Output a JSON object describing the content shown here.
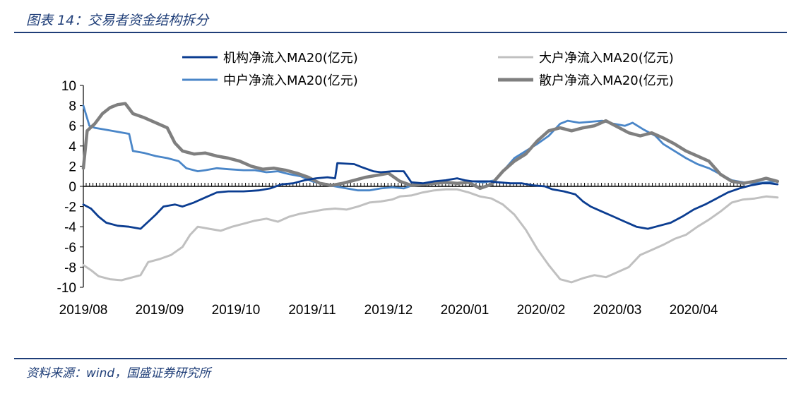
{
  "figure": {
    "title": "图表 14：交易者资金结构拆分",
    "source": "资料来源：wind，国盛证券研究所"
  },
  "chart_data": {
    "type": "line",
    "title": "",
    "xlabel": "",
    "ylabel": "",
    "ylim": [
      -10,
      10
    ],
    "yticks": [
      "10",
      "8",
      "6",
      "4",
      "2",
      "0",
      "-2",
      "-4",
      "-6",
      "-8",
      "-10"
    ],
    "xtick_labels": [
      "2019/08",
      "2019/09",
      "2019/10",
      "2019/11",
      "2019/12",
      "2020/01",
      "2020/02",
      "2020/03",
      "2020/04"
    ],
    "x_domain": [
      "2019/08",
      "2020/04 end"
    ],
    "legend_position": "top",
    "series": [
      {
        "name": "机构净流入MA20(亿元)",
        "color": "#0b3d91",
        "points": [
          [
            0.0,
            -1.8
          ],
          [
            0.1,
            -2.2
          ],
          [
            0.2,
            -3.0
          ],
          [
            0.3,
            -3.6
          ],
          [
            0.45,
            -3.9
          ],
          [
            0.6,
            -4.0
          ],
          [
            0.75,
            -4.2
          ],
          [
            0.85,
            -3.5
          ],
          [
            0.95,
            -2.8
          ],
          [
            1.05,
            -2.0
          ],
          [
            1.2,
            -1.8
          ],
          [
            1.3,
            -2.0
          ],
          [
            1.45,
            -1.6
          ],
          [
            1.6,
            -1.1
          ],
          [
            1.75,
            -0.6
          ],
          [
            1.9,
            -0.5
          ],
          [
            2.1,
            -0.5
          ],
          [
            2.3,
            -0.4
          ],
          [
            2.45,
            -0.2
          ],
          [
            2.6,
            0.2
          ],
          [
            2.75,
            0.3
          ],
          [
            2.9,
            0.6
          ],
          [
            3.05,
            0.8
          ],
          [
            3.2,
            0.9
          ],
          [
            3.3,
            0.8
          ],
          [
            3.33,
            2.3
          ],
          [
            3.55,
            2.2
          ],
          [
            3.65,
            1.9
          ],
          [
            3.8,
            1.5
          ],
          [
            3.9,
            1.4
          ],
          [
            4.05,
            1.5
          ],
          [
            4.2,
            1.5
          ],
          [
            4.3,
            0.4
          ],
          [
            4.45,
            0.3
          ],
          [
            4.6,
            0.5
          ],
          [
            4.75,
            0.6
          ],
          [
            4.9,
            0.8
          ],
          [
            5.0,
            0.6
          ],
          [
            5.1,
            0.5
          ],
          [
            5.3,
            0.5
          ],
          [
            5.45,
            0.4
          ],
          [
            5.6,
            0.3
          ],
          [
            5.75,
            0.3
          ],
          [
            5.9,
            0.1
          ],
          [
            6.05,
            0.0
          ],
          [
            6.15,
            -0.3
          ],
          [
            6.3,
            -0.5
          ],
          [
            6.45,
            -0.8
          ],
          [
            6.55,
            -1.5
          ],
          [
            6.65,
            -2.0
          ],
          [
            6.8,
            -2.5
          ],
          [
            6.95,
            -3.0
          ],
          [
            7.1,
            -3.5
          ],
          [
            7.25,
            -4.0
          ],
          [
            7.4,
            -4.2
          ],
          [
            7.55,
            -3.9
          ],
          [
            7.7,
            -3.6
          ],
          [
            7.85,
            -3.0
          ],
          [
            8.0,
            -2.3
          ],
          [
            8.15,
            -1.8
          ],
          [
            8.3,
            -1.2
          ],
          [
            8.45,
            -0.6
          ],
          [
            8.6,
            -0.2
          ],
          [
            8.75,
            0.1
          ],
          [
            8.9,
            0.3
          ],
          [
            9.0,
            0.3
          ],
          [
            9.1,
            0.2
          ]
        ]
      },
      {
        "name": "大户净流入MA20(亿元)",
        "color": "#c0c0c0",
        "points": [
          [
            0.0,
            -7.8
          ],
          [
            0.1,
            -8.3
          ],
          [
            0.2,
            -8.9
          ],
          [
            0.35,
            -9.2
          ],
          [
            0.5,
            -9.3
          ],
          [
            0.65,
            -9.0
          ],
          [
            0.75,
            -8.8
          ],
          [
            0.85,
            -7.5
          ],
          [
            1.0,
            -7.2
          ],
          [
            1.15,
            -6.8
          ],
          [
            1.3,
            -6.0
          ],
          [
            1.4,
            -4.8
          ],
          [
            1.5,
            -4.0
          ],
          [
            1.65,
            -4.2
          ],
          [
            1.8,
            -4.4
          ],
          [
            1.95,
            -4.0
          ],
          [
            2.1,
            -3.7
          ],
          [
            2.25,
            -3.4
          ],
          [
            2.4,
            -3.2
          ],
          [
            2.55,
            -3.5
          ],
          [
            2.7,
            -3.0
          ],
          [
            2.85,
            -2.7
          ],
          [
            3.0,
            -2.5
          ],
          [
            3.15,
            -2.3
          ],
          [
            3.3,
            -2.2
          ],
          [
            3.45,
            -2.3
          ],
          [
            3.6,
            -2.0
          ],
          [
            3.75,
            -1.6
          ],
          [
            3.9,
            -1.5
          ],
          [
            4.05,
            -1.3
          ],
          [
            4.15,
            -1.0
          ],
          [
            4.3,
            -0.9
          ],
          [
            4.45,
            -0.6
          ],
          [
            4.6,
            -0.4
          ],
          [
            4.75,
            -0.3
          ],
          [
            4.9,
            -0.3
          ],
          [
            5.05,
            -0.6
          ],
          [
            5.2,
            -1.0
          ],
          [
            5.35,
            -1.2
          ],
          [
            5.5,
            -1.8
          ],
          [
            5.65,
            -2.8
          ],
          [
            5.8,
            -4.3
          ],
          [
            5.95,
            -6.2
          ],
          [
            6.1,
            -7.8
          ],
          [
            6.25,
            -9.2
          ],
          [
            6.4,
            -9.5
          ],
          [
            6.55,
            -9.1
          ],
          [
            6.7,
            -8.8
          ],
          [
            6.85,
            -9.0
          ],
          [
            7.0,
            -8.5
          ],
          [
            7.15,
            -8.0
          ],
          [
            7.3,
            -6.8
          ],
          [
            7.45,
            -6.3
          ],
          [
            7.6,
            -5.8
          ],
          [
            7.75,
            -5.2
          ],
          [
            7.9,
            -4.8
          ],
          [
            8.05,
            -4.0
          ],
          [
            8.2,
            -3.3
          ],
          [
            8.35,
            -2.5
          ],
          [
            8.5,
            -1.6
          ],
          [
            8.65,
            -1.3
          ],
          [
            8.8,
            -1.2
          ],
          [
            8.95,
            -1.0
          ],
          [
            9.1,
            -1.1
          ]
        ]
      },
      {
        "name": "中户净流入MA20(亿元)",
        "color": "#4a86c8",
        "points": [
          [
            0.0,
            8.0
          ],
          [
            0.08,
            6.0
          ],
          [
            0.15,
            5.8
          ],
          [
            0.3,
            5.6
          ],
          [
            0.45,
            5.4
          ],
          [
            0.6,
            5.2
          ],
          [
            0.65,
            3.5
          ],
          [
            0.8,
            3.3
          ],
          [
            0.95,
            3.0
          ],
          [
            1.1,
            2.8
          ],
          [
            1.25,
            2.5
          ],
          [
            1.35,
            1.8
          ],
          [
            1.5,
            1.5
          ],
          [
            1.6,
            1.6
          ],
          [
            1.75,
            1.8
          ],
          [
            1.9,
            1.7
          ],
          [
            2.1,
            1.6
          ],
          [
            2.25,
            1.6
          ],
          [
            2.4,
            1.4
          ],
          [
            2.55,
            1.5
          ],
          [
            2.7,
            1.2
          ],
          [
            2.85,
            1.0
          ],
          [
            3.0,
            0.5
          ],
          [
            3.15,
            0.2
          ],
          [
            3.3,
            0.0
          ],
          [
            3.45,
            -0.2
          ],
          [
            3.6,
            -0.4
          ],
          [
            3.75,
            -0.4
          ],
          [
            3.9,
            -0.2
          ],
          [
            4.05,
            -0.1
          ],
          [
            4.2,
            -0.2
          ],
          [
            4.35,
            0.2
          ],
          [
            4.5,
            0.3
          ],
          [
            4.65,
            0.4
          ],
          [
            4.8,
            0.3
          ],
          [
            4.95,
            0.3
          ],
          [
            5.1,
            0.5
          ],
          [
            5.25,
            0.4
          ],
          [
            5.4,
            0.6
          ],
          [
            5.5,
            1.5
          ],
          [
            5.65,
            2.8
          ],
          [
            5.8,
            3.5
          ],
          [
            5.95,
            4.2
          ],
          [
            6.1,
            5.0
          ],
          [
            6.25,
            6.2
          ],
          [
            6.35,
            6.5
          ],
          [
            6.5,
            6.3
          ],
          [
            6.65,
            6.4
          ],
          [
            6.8,
            6.5
          ],
          [
            6.95,
            6.2
          ],
          [
            7.1,
            6.0
          ],
          [
            7.2,
            6.3
          ],
          [
            7.35,
            5.6
          ],
          [
            7.5,
            5.0
          ],
          [
            7.6,
            4.2
          ],
          [
            7.75,
            3.5
          ],
          [
            7.9,
            2.8
          ],
          [
            8.05,
            2.2
          ],
          [
            8.2,
            1.8
          ],
          [
            8.35,
            1.2
          ],
          [
            8.5,
            0.6
          ],
          [
            8.65,
            0.4
          ],
          [
            8.8,
            0.3
          ],
          [
            8.95,
            0.4
          ],
          [
            9.1,
            0.5
          ]
        ]
      },
      {
        "name": "散户净流入MA20(亿元)",
        "color": "#7f7f7f",
        "points": [
          [
            0.0,
            1.8
          ],
          [
            0.05,
            5.5
          ],
          [
            0.15,
            6.2
          ],
          [
            0.25,
            7.2
          ],
          [
            0.35,
            7.8
          ],
          [
            0.45,
            8.1
          ],
          [
            0.55,
            8.2
          ],
          [
            0.65,
            7.2
          ],
          [
            0.8,
            6.8
          ],
          [
            0.95,
            6.3
          ],
          [
            1.1,
            5.8
          ],
          [
            1.2,
            4.3
          ],
          [
            1.3,
            3.5
          ],
          [
            1.45,
            3.2
          ],
          [
            1.6,
            3.3
          ],
          [
            1.75,
            3.0
          ],
          [
            1.9,
            2.8
          ],
          [
            2.05,
            2.5
          ],
          [
            2.2,
            2.0
          ],
          [
            2.35,
            1.7
          ],
          [
            2.5,
            1.8
          ],
          [
            2.65,
            1.6
          ],
          [
            2.8,
            1.3
          ],
          [
            2.95,
            0.9
          ],
          [
            3.1,
            0.3
          ],
          [
            3.25,
            0.1
          ],
          [
            3.4,
            0.3
          ],
          [
            3.55,
            0.6
          ],
          [
            3.7,
            0.9
          ],
          [
            3.85,
            1.1
          ],
          [
            4.0,
            1.3
          ],
          [
            4.15,
            0.5
          ],
          [
            4.3,
            0.1
          ],
          [
            4.45,
            0.2
          ],
          [
            4.6,
            0.3
          ],
          [
            4.75,
            0.4
          ],
          [
            4.9,
            0.3
          ],
          [
            5.05,
            0.4
          ],
          [
            5.2,
            -0.2
          ],
          [
            5.35,
            0.2
          ],
          [
            5.5,
            1.5
          ],
          [
            5.65,
            2.5
          ],
          [
            5.8,
            3.2
          ],
          [
            5.95,
            4.5
          ],
          [
            6.1,
            5.5
          ],
          [
            6.25,
            5.8
          ],
          [
            6.4,
            5.5
          ],
          [
            6.55,
            5.8
          ],
          [
            6.7,
            6.0
          ],
          [
            6.85,
            6.5
          ],
          [
            7.0,
            5.9
          ],
          [
            7.15,
            5.3
          ],
          [
            7.3,
            5.0
          ],
          [
            7.45,
            5.3
          ],
          [
            7.6,
            4.8
          ],
          [
            7.75,
            4.2
          ],
          [
            7.9,
            3.5
          ],
          [
            8.05,
            3.0
          ],
          [
            8.2,
            2.5
          ],
          [
            8.35,
            1.2
          ],
          [
            8.5,
            0.5
          ],
          [
            8.65,
            0.3
          ],
          [
            8.8,
            0.5
          ],
          [
            8.95,
            0.8
          ],
          [
            9.1,
            0.5
          ]
        ]
      }
    ]
  }
}
